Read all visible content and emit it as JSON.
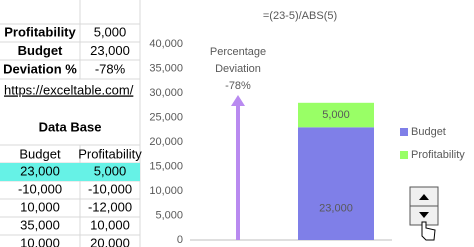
{
  "spreadsheet": {
    "summary": [
      [
        "Profitability",
        "5,000"
      ],
      [
        "Budget",
        "23,000"
      ],
      [
        "Deviation %",
        "-78%"
      ]
    ],
    "link": "https://exceltable.com/",
    "database_title": "Data Base",
    "headers": [
      "Budget",
      "Profitability"
    ],
    "rows": [
      [
        "23,000",
        "5,000"
      ],
      [
        "-10,000",
        "-10,000"
      ],
      [
        "10,000",
        "-12,000"
      ],
      [
        "35,000",
        "10,000"
      ],
      [
        "10,000",
        "20,000"
      ]
    ]
  },
  "chart_data": {
    "type": "bar",
    "stacked": true,
    "title": "=(23-5)/ABS(5)",
    "annotation": [
      "Percentage",
      "Deviation",
      "-78%"
    ],
    "categories": [
      null
    ],
    "series": [
      {
        "name": "Budget",
        "color": "#7f7fe8",
        "values": [
          23000
        ],
        "value_labels": [
          "23,000"
        ]
      },
      {
        "name": "Profitability",
        "color": "#99ff66",
        "values": [
          5000
        ],
        "value_labels": [
          "5,000"
        ]
      }
    ],
    "ylim": [
      0,
      40000
    ],
    "yticks": [
      0,
      {
        "value": 5000,
        "label": "5,000"
      },
      {
        "value": 10000,
        "label": "10,000"
      },
      {
        "value": 15000,
        "label": "15,000"
      },
      {
        "value": 20000,
        "label": "20,000"
      },
      {
        "value": 25000,
        "label": "25,000"
      },
      {
        "value": 30000,
        "label": "30,000"
      },
      {
        "value": 35000,
        "label": "35,000"
      },
      {
        "value": 40000,
        "label": "40,000"
      }
    ],
    "legend": "right"
  }
}
